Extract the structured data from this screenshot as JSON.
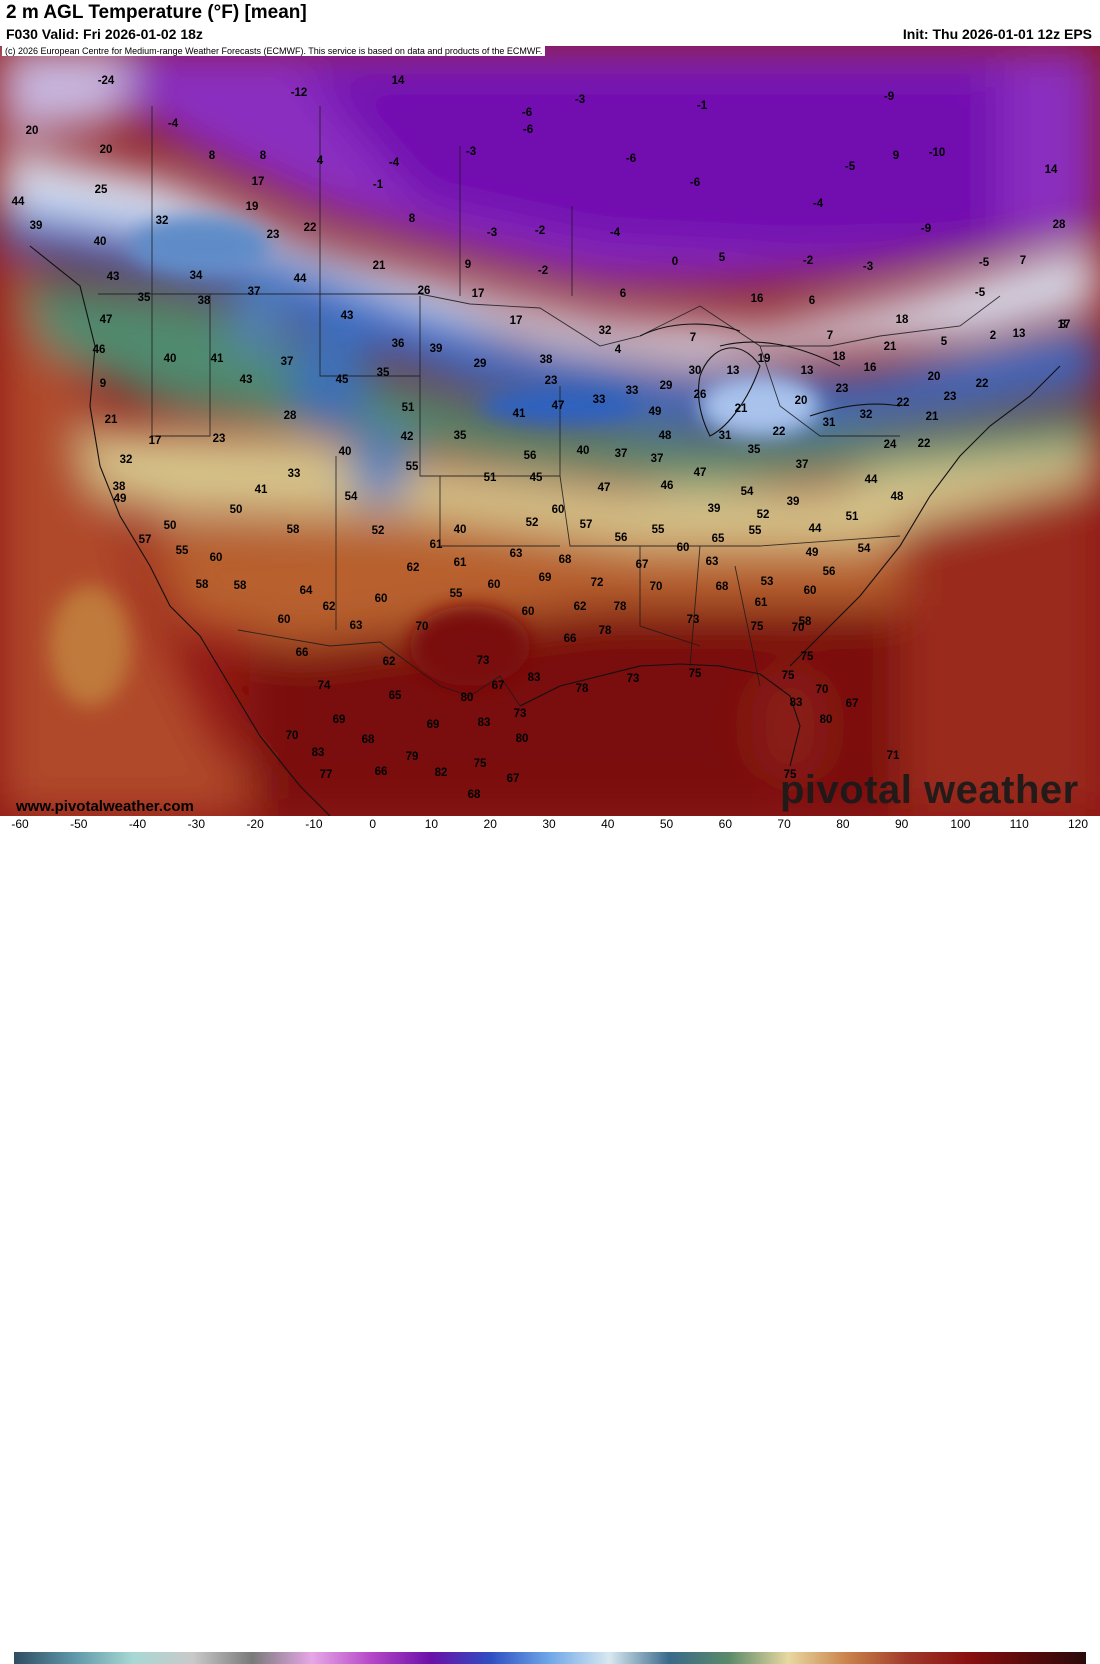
{
  "header": {
    "title": "2 m AGL Temperature (°F) [mean]",
    "valid": "F030 Valid: Fri 2026-01-02 18z",
    "init": "Init: Thu 2026-01-01 12z EPS"
  },
  "map": {
    "copyright": "(c) 2026 European Centre for Medium-range Weather Forecasts (ECMWF). This service is based on data and products of the ECMWF.",
    "website": "www.pivotalweather.com",
    "brand": "pivotal weather",
    "values": [
      {
        "v": "-24"
      },
      {
        "v": "20"
      },
      {
        "v": "20"
      },
      {
        "v": "25"
      },
      {
        "v": "44"
      },
      {
        "v": "39"
      },
      {
        "v": "40"
      },
      {
        "v": "-4"
      },
      {
        "v": "8"
      },
      {
        "v": "8"
      },
      {
        "v": "17"
      },
      {
        "v": "19"
      },
      {
        "v": "32"
      },
      {
        "v": "23"
      },
      {
        "v": "22"
      },
      {
        "v": "-12"
      },
      {
        "v": "14"
      },
      {
        "v": "4"
      },
      {
        "v": "-4"
      },
      {
        "v": "-1"
      },
      {
        "v": "8"
      },
      {
        "v": "-3"
      },
      {
        "v": "-6"
      },
      {
        "v": "-6"
      },
      {
        "v": "-3"
      },
      {
        "v": "-6"
      },
      {
        "v": "-6"
      },
      {
        "v": "-2"
      },
      {
        "v": "-3"
      },
      {
        "v": "-4"
      },
      {
        "v": "-1"
      },
      {
        "v": "-9"
      },
      {
        "v": "9"
      },
      {
        "v": "-10"
      },
      {
        "v": "14"
      },
      {
        "v": "-5"
      },
      {
        "v": "28"
      },
      {
        "v": "-4"
      },
      {
        "v": "-2"
      },
      {
        "v": "-3"
      },
      {
        "v": "-9"
      },
      {
        "v": "-5"
      },
      {
        "v": "7"
      },
      {
        "v": "-5"
      },
      {
        "v": "8"
      },
      {
        "v": "43"
      },
      {
        "v": "35"
      },
      {
        "v": "34"
      },
      {
        "v": "38"
      },
      {
        "v": "37"
      },
      {
        "v": "44"
      },
      {
        "v": "21"
      },
      {
        "v": "9"
      },
      {
        "v": "-2"
      },
      {
        "v": "0"
      },
      {
        "v": "5"
      },
      {
        "v": "26"
      },
      {
        "v": "17"
      },
      {
        "v": "17"
      },
      {
        "v": "6"
      },
      {
        "v": "16"
      },
      {
        "v": "6"
      },
      {
        "v": "47"
      },
      {
        "v": "46"
      },
      {
        "v": "40"
      },
      {
        "v": "41"
      },
      {
        "v": "37"
      },
      {
        "v": "43"
      },
      {
        "v": "36"
      },
      {
        "v": "39"
      },
      {
        "v": "29"
      },
      {
        "v": "32"
      },
      {
        "v": "4"
      },
      {
        "v": "7"
      },
      {
        "v": "7"
      },
      {
        "v": "18"
      },
      {
        "v": "5"
      },
      {
        "v": "2"
      },
      {
        "v": "13"
      },
      {
        "v": "17"
      },
      {
        "v": "9"
      },
      {
        "v": "43"
      },
      {
        "v": "45"
      },
      {
        "v": "35"
      },
      {
        "v": "38"
      },
      {
        "v": "23"
      },
      {
        "v": "30"
      },
      {
        "v": "13"
      },
      {
        "v": "19"
      },
      {
        "v": "18"
      },
      {
        "v": "21"
      },
      {
        "v": "13"
      },
      {
        "v": "16"
      },
      {
        "v": "20"
      },
      {
        "v": "22"
      },
      {
        "v": "21"
      },
      {
        "v": "28"
      },
      {
        "v": "51"
      },
      {
        "v": "41"
      },
      {
        "v": "47"
      },
      {
        "v": "33"
      },
      {
        "v": "33"
      },
      {
        "v": "29"
      },
      {
        "v": "26"
      },
      {
        "v": "21"
      },
      {
        "v": "20"
      },
      {
        "v": "23"
      },
      {
        "v": "23"
      },
      {
        "v": "17"
      },
      {
        "v": "23"
      },
      {
        "v": "42"
      },
      {
        "v": "35"
      },
      {
        "v": "49"
      },
      {
        "v": "48"
      },
      {
        "v": "31"
      },
      {
        "v": "35"
      },
      {
        "v": "31"
      },
      {
        "v": "32"
      },
      {
        "v": "22"
      },
      {
        "v": "22"
      },
      {
        "v": "21"
      },
      {
        "v": "24"
      },
      {
        "v": "22"
      },
      {
        "v": "32"
      },
      {
        "v": "33"
      },
      {
        "v": "55"
      },
      {
        "v": "40"
      },
      {
        "v": "56"
      },
      {
        "v": "40"
      },
      {
        "v": "37"
      },
      {
        "v": "37"
      },
      {
        "v": "37"
      },
      {
        "v": "38"
      },
      {
        "v": "41"
      },
      {
        "v": "54"
      },
      {
        "v": "51"
      },
      {
        "v": "45"
      },
      {
        "v": "47"
      },
      {
        "v": "46"
      },
      {
        "v": "47"
      },
      {
        "v": "39"
      },
      {
        "v": "39"
      },
      {
        "v": "44"
      },
      {
        "v": "48"
      },
      {
        "v": "49"
      },
      {
        "v": "50"
      },
      {
        "v": "54"
      },
      {
        "v": "50"
      },
      {
        "v": "58"
      },
      {
        "v": "52"
      },
      {
        "v": "40"
      },
      {
        "v": "52"
      },
      {
        "v": "60"
      },
      {
        "v": "57"
      },
      {
        "v": "56"
      },
      {
        "v": "55"
      },
      {
        "v": "54"
      },
      {
        "v": "52"
      },
      {
        "v": "44"
      },
      {
        "v": "51"
      },
      {
        "v": "57"
      },
      {
        "v": "55"
      },
      {
        "v": "60"
      },
      {
        "v": "61"
      },
      {
        "v": "62"
      },
      {
        "v": "61"
      },
      {
        "v": "63"
      },
      {
        "v": "68"
      },
      {
        "v": "60"
      },
      {
        "v": "65"
      },
      {
        "v": "55"
      },
      {
        "v": "49"
      },
      {
        "v": "56"
      },
      {
        "v": "58"
      },
      {
        "v": "58"
      },
      {
        "v": "64"
      },
      {
        "v": "62"
      },
      {
        "v": "60"
      },
      {
        "v": "55"
      },
      {
        "v": "60"
      },
      {
        "v": "69"
      },
      {
        "v": "72"
      },
      {
        "v": "67"
      },
      {
        "v": "70"
      },
      {
        "v": "63"
      },
      {
        "v": "68"
      },
      {
        "v": "53"
      },
      {
        "v": "60"
      },
      {
        "v": "58"
      },
      {
        "v": "61"
      },
      {
        "v": "60"
      },
      {
        "v": "63"
      },
      {
        "v": "70"
      },
      {
        "v": "60"
      },
      {
        "v": "62"
      },
      {
        "v": "78"
      },
      {
        "v": "73"
      },
      {
        "v": "75"
      },
      {
        "v": "70"
      },
      {
        "v": "66"
      },
      {
        "v": "62"
      },
      {
        "v": "73"
      },
      {
        "v": "66"
      },
      {
        "v": "78"
      },
      {
        "v": "75"
      },
      {
        "v": "74"
      },
      {
        "v": "65"
      },
      {
        "v": "80"
      },
      {
        "v": "67"
      },
      {
        "v": "83"
      },
      {
        "v": "78"
      },
      {
        "v": "73"
      },
      {
        "v": "75"
      },
      {
        "v": "75"
      },
      {
        "v": "70"
      },
      {
        "v": "69"
      },
      {
        "v": "69"
      },
      {
        "v": "83"
      },
      {
        "v": "73"
      },
      {
        "v": "83"
      },
      {
        "v": "80"
      },
      {
        "v": "67"
      },
      {
        "v": "70"
      },
      {
        "v": "68"
      },
      {
        "v": "80"
      },
      {
        "v": "83"
      },
      {
        "v": "79"
      },
      {
        "v": "77"
      },
      {
        "v": "66"
      },
      {
        "v": "82"
      },
      {
        "v": "75"
      },
      {
        "v": "67"
      },
      {
        "v": "68"
      },
      {
        "v": "75"
      },
      {
        "v": "71"
      },
      {
        "v": "70"
      },
      {
        "v": "73"
      }
    ]
  },
  "colorbar": {
    "ticks": [
      "-60",
      "-50",
      "-40",
      "-30",
      "-20",
      "-10",
      "0",
      "10",
      "20",
      "30",
      "40",
      "50",
      "60",
      "70",
      "80",
      "90",
      "100",
      "110",
      "120"
    ],
    "stops": [
      "#2f4d63",
      "#5f97a8",
      "#a8d8d4",
      "#c9c9c9",
      "#7a7a7a",
      "#e6a7e6",
      "#b548c8",
      "#6b10a8",
      "#2e4fc2",
      "#6fa8e8",
      "#d8e8f0",
      "#3a6a8a",
      "#5a8a6a",
      "#e8d8a0",
      "#c8824a",
      "#a03a2a",
      "#8a1010",
      "#5a0a0a",
      "#2a0a0a"
    ]
  }
}
